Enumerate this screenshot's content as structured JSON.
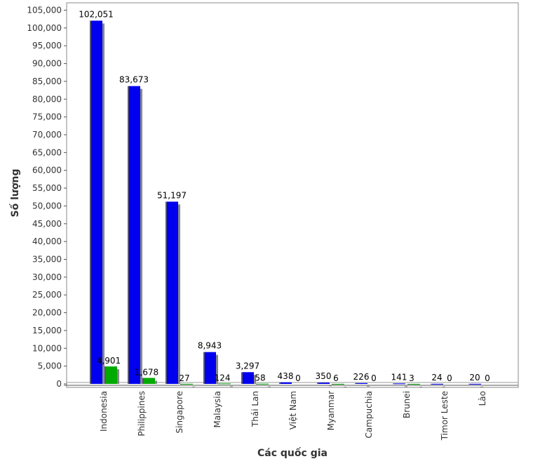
{
  "chart_data": {
    "type": "bar",
    "title": "",
    "xlabel": "Các quốc gia",
    "ylabel": "Số lượng",
    "categories": [
      "Indonesia",
      "Philippines",
      "Singapore",
      "Malaysia",
      "Thái Lan",
      "Việt Nam",
      "Myanmar",
      "Campuchia",
      "Brunei",
      "Timor Leste",
      "Lào"
    ],
    "series": [
      {
        "values": [
          102051,
          83673,
          51197,
          8943,
          3297,
          438,
          350,
          226,
          141,
          24,
          20
        ],
        "labels": [
          "102,051",
          "83,673",
          "51,197",
          "8,943",
          "3,297",
          "438",
          "350",
          "226",
          "141",
          "24",
          "20"
        ],
        "color": "#0000ee"
      },
      {
        "values": [
          4901,
          1678,
          27,
          124,
          58,
          0,
          6,
          0,
          3,
          0,
          0
        ],
        "labels": [
          "4,901",
          "1,678",
          "27",
          "124",
          "58",
          "0",
          "6",
          "0",
          "3",
          "0",
          "0"
        ],
        "color": "#00aa00"
      }
    ],
    "ylim": [
      0,
      105000
    ],
    "yticks": [
      0,
      5000,
      10000,
      15000,
      20000,
      25000,
      30000,
      35000,
      40000,
      45000,
      50000,
      55000,
      60000,
      65000,
      70000,
      75000,
      80000,
      85000,
      90000,
      95000,
      100000,
      105000
    ],
    "ytick_labels": [
      "0",
      "5,000",
      "10,000",
      "15,000",
      "20,000",
      "25,000",
      "30,000",
      "35,000",
      "40,000",
      "45,000",
      "50,000",
      "55,000",
      "60,000",
      "65,000",
      "70,000",
      "75,000",
      "80,000",
      "85,000",
      "90,000",
      "95,000",
      "100,000",
      "105,000"
    ],
    "grid": false,
    "legend": "none"
  }
}
